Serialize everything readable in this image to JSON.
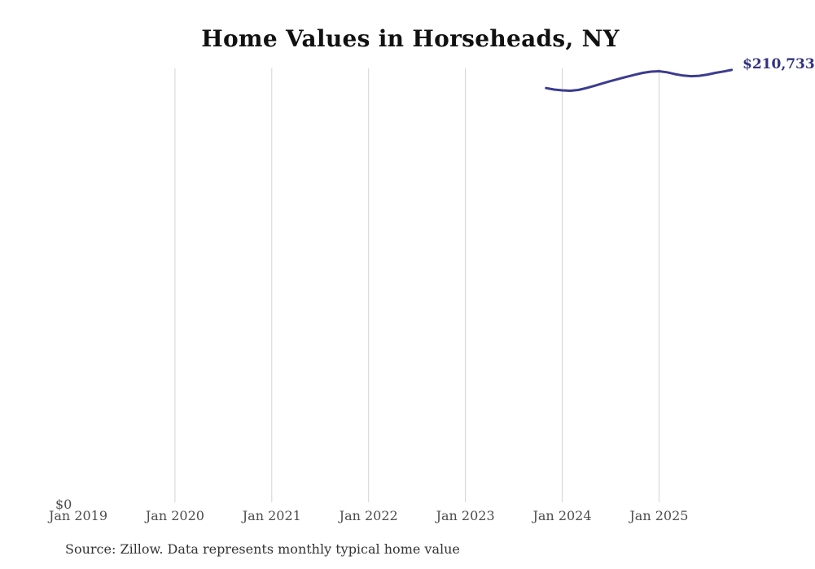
{
  "page": {
    "title": "Home Values in Horseheads, NY",
    "source_note": "Source: Zillow. Data represents monthly typical home value"
  },
  "colors": {
    "background": "#ffffff",
    "line": "#3c3c8f",
    "end_label": "#32327f",
    "gridline": "#d3d3d3",
    "tick_text": "#4d4d4d",
    "title_text": "#111111",
    "source_text": "#333333"
  },
  "y_axis": {
    "zero_tick": "$0"
  },
  "x_axis": {
    "ticks": [
      "Jan 2019",
      "Jan 2020",
      "Jan 2021",
      "Jan 2022",
      "Jan 2023",
      "Jan 2024",
      "Jan 2025"
    ]
  },
  "end_label": "$210,733",
  "chart_data": {
    "type": "line",
    "title": "Home Values in Horseheads, NY",
    "xlabel": "",
    "ylabel": "",
    "x_tick_labels": [
      "Jan 2019",
      "Jan 2020",
      "Jan 2021",
      "Jan 2022",
      "Jan 2023",
      "Jan 2024",
      "Jan 2025"
    ],
    "xlim": [
      "Jan 2019",
      "Jan 2026"
    ],
    "ylim": [
      0,
      211500
    ],
    "grid": "vertical yearly gridlines (Jan 2020 - Jan 2025), no gridline at Jan 2019",
    "legend": "none",
    "annotations": [
      {
        "text": "$210,733",
        "position": "end of line, clipped at right edge of image"
      },
      {
        "text": "$0",
        "position": "bottom left, y-axis zero tick"
      }
    ],
    "series": [
      {
        "name": "Monthly typical home value",
        "x": [
          "2023-11",
          "2023-12",
          "2024-01",
          "2024-02",
          "2024-03",
          "2024-04",
          "2024-05",
          "2024-06",
          "2024-07",
          "2024-08",
          "2024-09",
          "2024-10",
          "2024-11",
          "2024-12",
          "2025-01",
          "2025-02",
          "2025-03",
          "2025-04",
          "2025-05",
          "2025-06",
          "2025-07",
          "2025-08",
          "2025-09",
          "2025-10"
        ],
        "values": [
          201900,
          201200,
          200800,
          200600,
          201000,
          201900,
          203000,
          204200,
          205300,
          206400,
          207400,
          208400,
          209300,
          209900,
          210100,
          209600,
          208700,
          208000,
          207700,
          207900,
          208500,
          209300,
          210000,
          210733
        ]
      }
    ]
  }
}
